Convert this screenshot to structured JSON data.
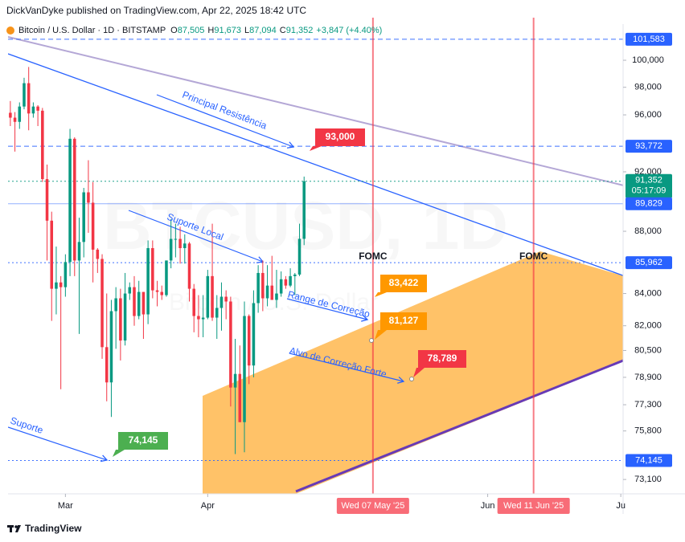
{
  "chart_data": {
    "type": "candlestick",
    "publisher_line": "DickVanDyke published on TradingView.com, Apr 22, 2025 18:42 UTC",
    "symbol": "Bitcoin / U.S. Dollar · 1D · BITSTAMP",
    "ohlc": [
      {
        "key": "O",
        "label": "87,505"
      },
      {
        "key": "H",
        "label": "91,673"
      },
      {
        "key": "L",
        "label": "87,094"
      },
      {
        "key": "C",
        "label": "91,352"
      }
    ],
    "change": "+3,847 (+4.40%)",
    "watermark": "BTCUSD, 1D",
    "watermark_sub": "Bitcoin / U.S. Dollar",
    "footer": "TradingView",
    "up_color": "#089981",
    "down_color": "#f23645",
    "log_scale": true,
    "xlim": [
      -0.5,
      133.5
    ],
    "ylim": [
      72320,
      102740
    ],
    "xticks": [
      {
        "value": 12,
        "label": "Mar"
      },
      {
        "value": 43,
        "label": "Apr"
      },
      {
        "value": 104,
        "label": "Jun"
      },
      {
        "value": 133,
        "label": "Ju"
      }
    ],
    "yticks": [
      {
        "value": 73100,
        "label": "73,100"
      },
      {
        "value": 75800,
        "label": "75,800"
      },
      {
        "value": 77300,
        "label": "77,300"
      },
      {
        "value": 78900,
        "label": "78,900"
      },
      {
        "value": 80500,
        "label": "80,500"
      },
      {
        "value": 82000,
        "label": "82,000"
      },
      {
        "value": 84000,
        "label": "84,000"
      },
      {
        "value": 88000,
        "label": "88,000"
      },
      {
        "value": 92000,
        "label": "92,000"
      },
      {
        "value": 96000,
        "label": "96,000"
      },
      {
        "value": 98000,
        "label": "98,000"
      },
      {
        "value": 100000,
        "label": "100,000"
      }
    ],
    "candles": {
      "x": [
        0,
        1,
        2,
        3,
        4,
        5,
        6,
        7,
        8,
        9,
        10,
        11,
        12,
        13,
        14,
        15,
        16,
        17,
        18,
        19,
        20,
        21,
        22,
        23,
        24,
        25,
        26,
        27,
        28,
        29,
        30,
        31,
        32,
        33,
        34,
        35,
        36,
        37,
        38,
        39,
        40,
        41,
        42,
        43,
        44,
        45,
        46,
        47,
        48,
        49,
        50,
        51,
        52,
        53,
        54,
        55,
        56,
        57,
        58,
        59,
        60,
        61,
        62,
        63,
        64
      ],
      "open": [
        96150,
        95800,
        95500,
        96600,
        98300,
        96100,
        96600,
        96300,
        91500,
        88700,
        84300,
        84700,
        84400,
        86000,
        94300,
        86100,
        87300,
        90600,
        89900,
        86800,
        86200,
        80700,
        78600,
        82900,
        83700,
        81100,
        84000,
        84400,
        82600,
        84100,
        82700,
        86900,
        84200,
        84100,
        83900,
        86100,
        87500,
        87500,
        86900,
        87200,
        84300,
        82600,
        82400,
        82500,
        85100,
        82500,
        83100,
        83800,
        83500,
        78300,
        79100,
        76300,
        82600,
        79600,
        83400,
        85300,
        83700,
        84500,
        83600,
        84000,
        84900,
        84500,
        85100,
        85200,
        87505
      ],
      "high": [
        97000,
        96200,
        96900,
        98700,
        99500,
        96900,
        96700,
        96500,
        92500,
        89300,
        87000,
        85100,
        86500,
        95000,
        94400,
        88900,
        90900,
        92800,
        91300,
        86900,
        86500,
        84000,
        83600,
        84400,
        84300,
        85300,
        84700,
        85100,
        84800,
        84100,
        87400,
        87400,
        84800,
        84500,
        86100,
        88800,
        88500,
        88300,
        87800,
        87300,
        84600,
        83900,
        83900,
        85500,
        88500,
        83900,
        84700,
        84200,
        83800,
        81200,
        80800,
        83500,
        82700,
        84200,
        85800,
        86100,
        85800,
        86400,
        85500,
        85400,
        85100,
        85600,
        85300,
        88500,
        91673
      ],
      "low": [
        95200,
        93400,
        95000,
        96400,
        94900,
        95800,
        95200,
        91300,
        86100,
        82300,
        82700,
        78200,
        83800,
        85100,
        85100,
        81500,
        86300,
        87900,
        84700,
        85300,
        80000,
        77500,
        76600,
        80600,
        79900,
        80800,
        83600,
        82000,
        82400,
        81200,
        82100,
        83700,
        83200,
        83600,
        83800,
        85600,
        86300,
        85900,
        85900,
        83500,
        81600,
        81300,
        81300,
        82400,
        82300,
        81200,
        81700,
        82400,
        77200,
        74500,
        76300,
        74600,
        78500,
        78900,
        82800,
        82900,
        83200,
        83600,
        83100,
        83800,
        84300,
        84400,
        83900,
        85100,
        87094
      ],
      "close": [
        95800,
        95500,
        96600,
        98300,
        96100,
        96600,
        96300,
        91500,
        88700,
        84300,
        84700,
        84400,
        86000,
        94300,
        86100,
        87300,
        90600,
        89900,
        86800,
        86200,
        80700,
        78600,
        82900,
        83700,
        81100,
        84000,
        84400,
        82600,
        84100,
        82700,
        86900,
        84200,
        84100,
        83900,
        86100,
        87500,
        87500,
        86900,
        87200,
        84300,
        82600,
        82400,
        82500,
        85100,
        82500,
        83100,
        83800,
        83500,
        78300,
        79100,
        76300,
        82600,
        79600,
        83400,
        85300,
        83700,
        84500,
        83600,
        84000,
        84900,
        84500,
        85100,
        85200,
        87505,
        91352
      ]
    },
    "hlines": [
      {
        "value": 101583,
        "label": "101,583",
        "color": "#2962ff",
        "style": "dashed"
      },
      {
        "value": 93772,
        "label": "93,772",
        "color": "#2962ff",
        "style": "dashed"
      },
      {
        "value": 91352,
        "label": "91,352",
        "countdown": "05:17:09",
        "color": "#089981",
        "style": "dotted"
      },
      {
        "value": 89829,
        "label": "89,829",
        "color": "#2962ff",
        "style": "solid"
      },
      {
        "value": 85962,
        "label": "85,962",
        "color": "#2962ff",
        "style": "dotted"
      },
      {
        "value": 74145,
        "label": "74,145",
        "color": "#2962ff",
        "style": "dotted"
      }
    ],
    "vlines": [
      {
        "value": 79,
        "date_label": "Wed 07 May '25",
        "text": "FOMC"
      },
      {
        "value": 114,
        "date_label": "Wed 11 Jun '25",
        "text": "FOMC"
      }
    ],
    "drawing_texts": [
      "Principal Resistência",
      "Suporte Local",
      "Range de Correção",
      "Alvo de Correção Forte",
      "Suporte"
    ],
    "callouts": [
      "93,000",
      "83,422",
      "81,127",
      "78,789",
      "74,145"
    ]
  }
}
